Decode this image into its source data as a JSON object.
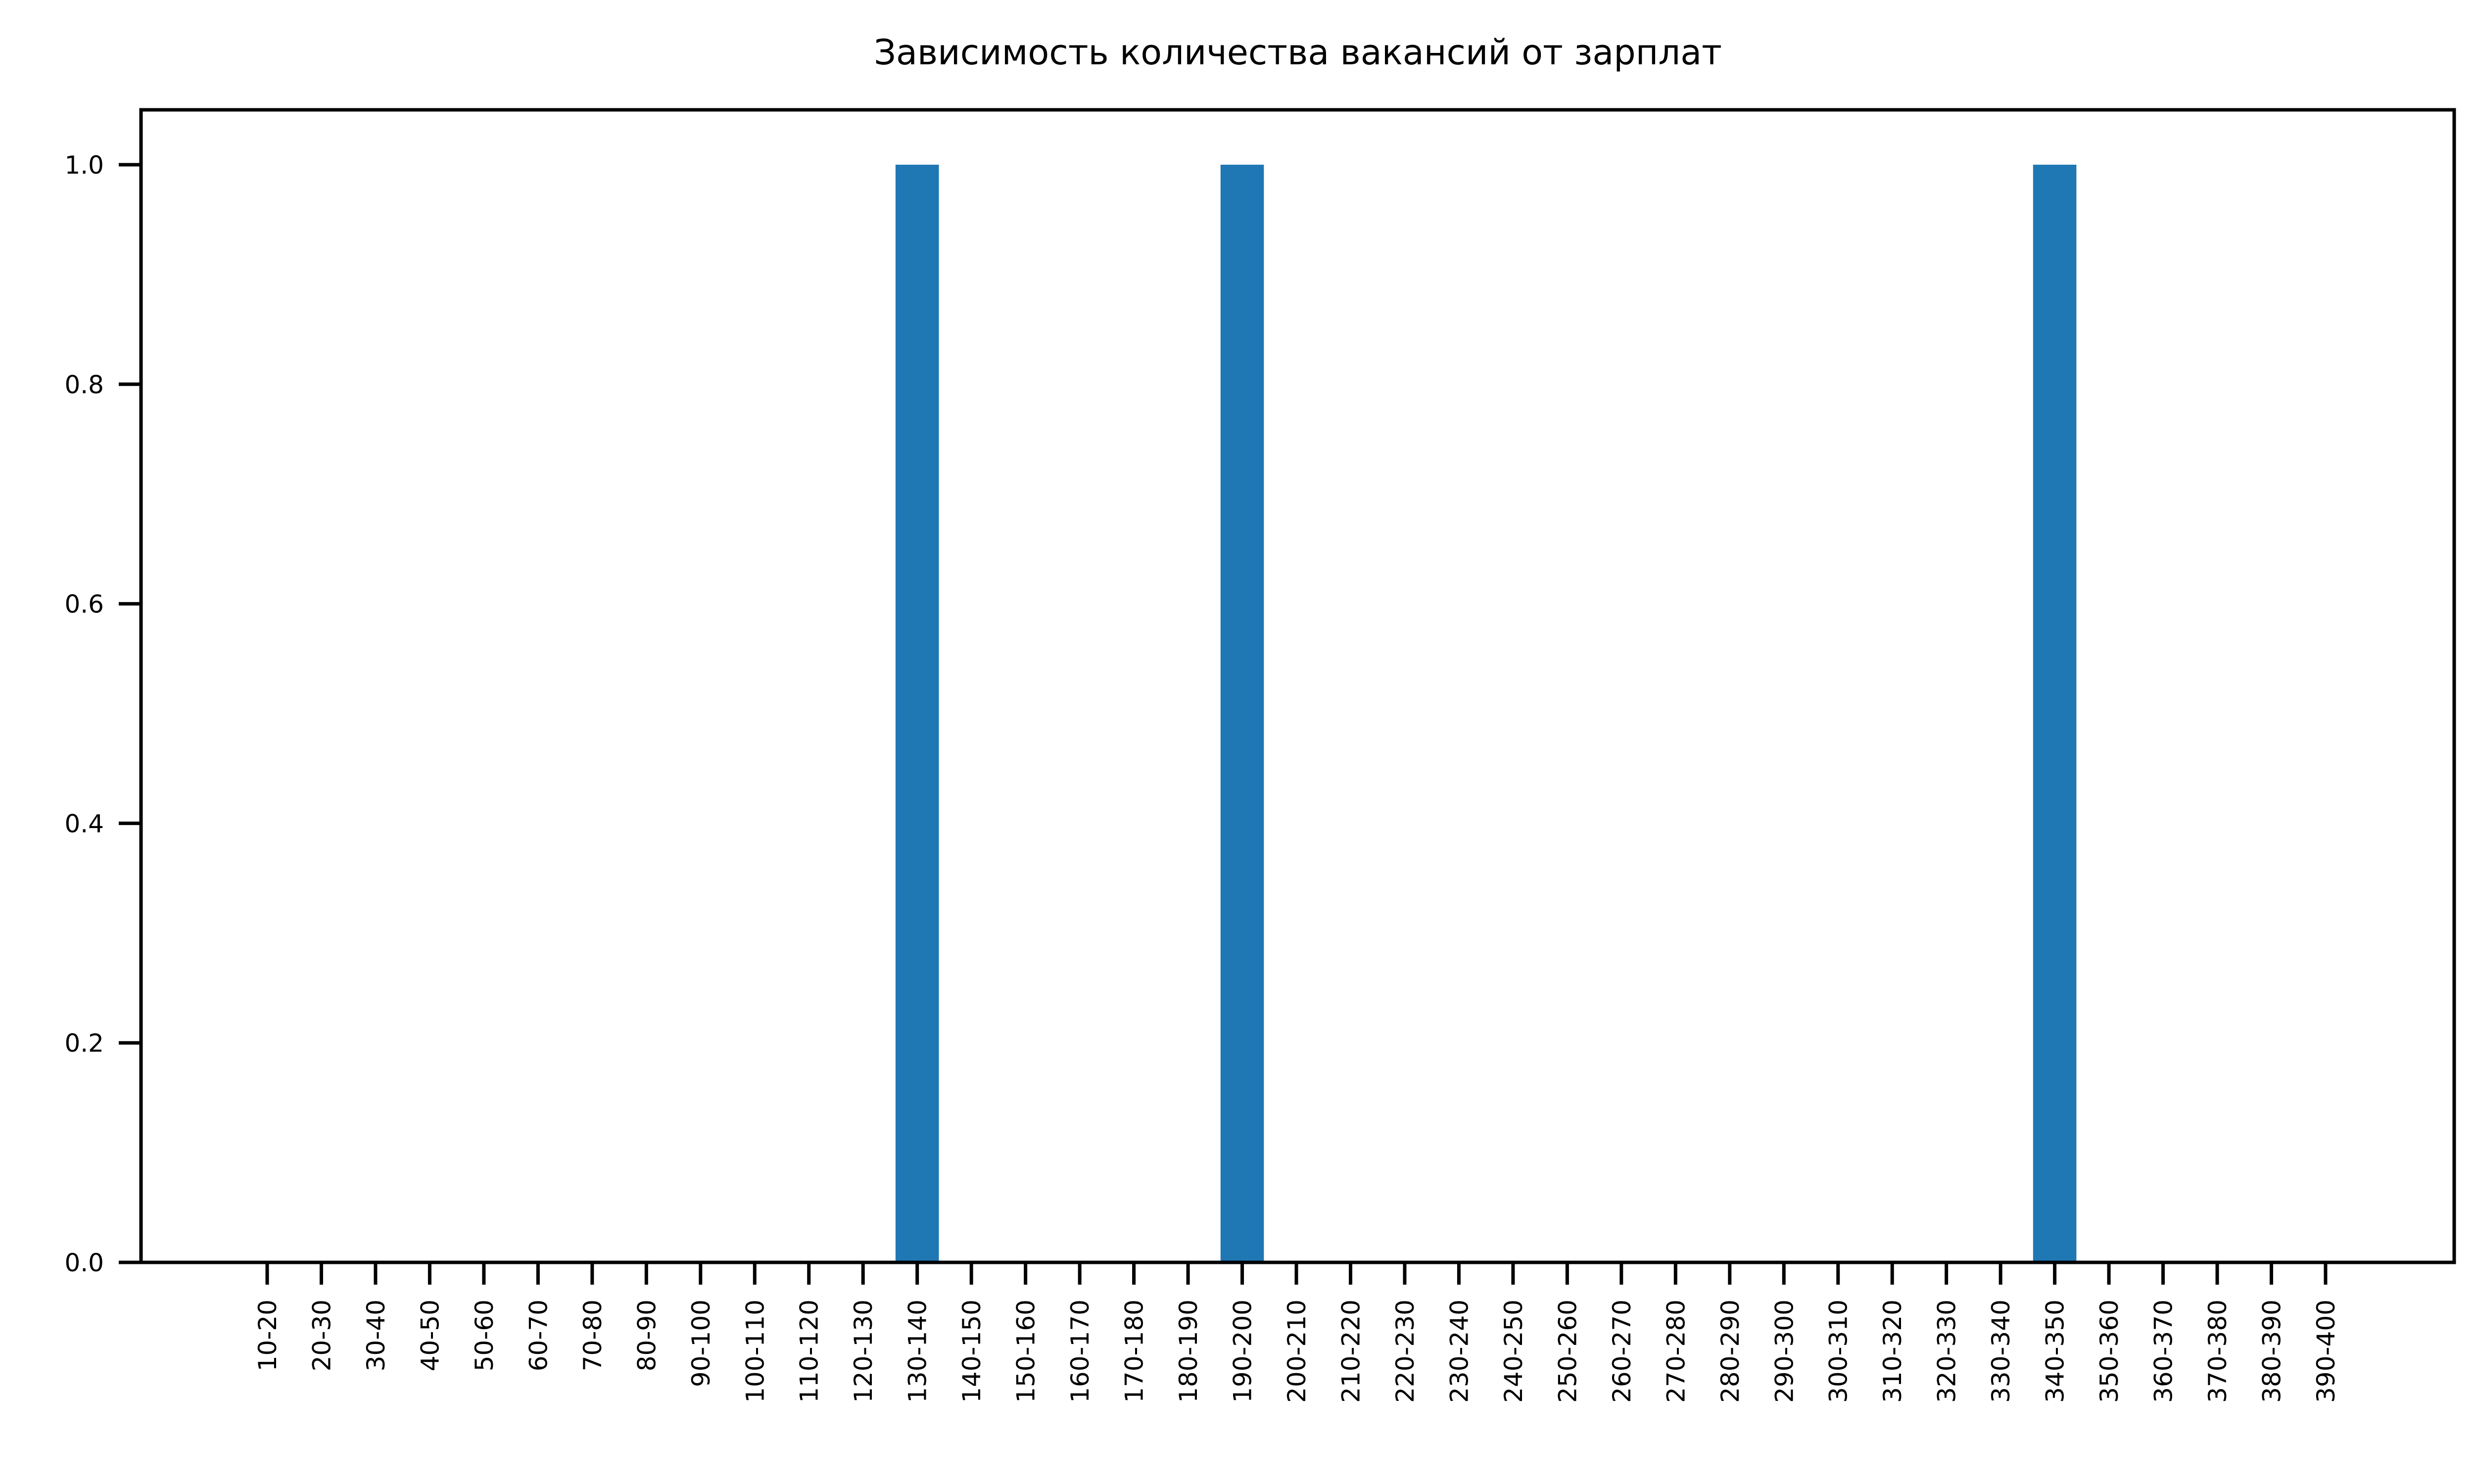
{
  "chart_data": {
    "type": "bar",
    "title": "Зависимость количества вакансий от зарплат",
    "xlabel": "",
    "ylabel": "",
    "categories": [
      "10-20",
      "20-30",
      "30-40",
      "40-50",
      "50-60",
      "60-70",
      "70-80",
      "80-90",
      "90-100",
      "100-110",
      "110-120",
      "120-130",
      "130-140",
      "140-150",
      "150-160",
      "160-170",
      "170-180",
      "180-190",
      "190-200",
      "200-210",
      "210-220",
      "220-230",
      "230-240",
      "240-250",
      "250-260",
      "260-270",
      "270-280",
      "280-290",
      "290-300",
      "300-310",
      "310-320",
      "320-330",
      "330-340",
      "340-350",
      "350-360",
      "360-370",
      "370-380",
      "380-390",
      "390-400"
    ],
    "values": [
      0,
      0,
      0,
      0,
      0,
      0,
      0,
      0,
      0,
      0,
      0,
      0,
      1,
      0,
      0,
      0,
      0,
      0,
      1,
      0,
      0,
      0,
      0,
      0,
      0,
      0,
      0,
      0,
      0,
      0,
      0,
      0,
      0,
      1,
      0,
      0,
      0,
      0,
      0
    ],
    "ylim": [
      0,
      1.05
    ],
    "yticks": [
      "0.0",
      "0.2",
      "0.4",
      "0.6",
      "0.8",
      "1.0"
    ],
    "grid": false,
    "bar_color": "#1f77b4"
  }
}
